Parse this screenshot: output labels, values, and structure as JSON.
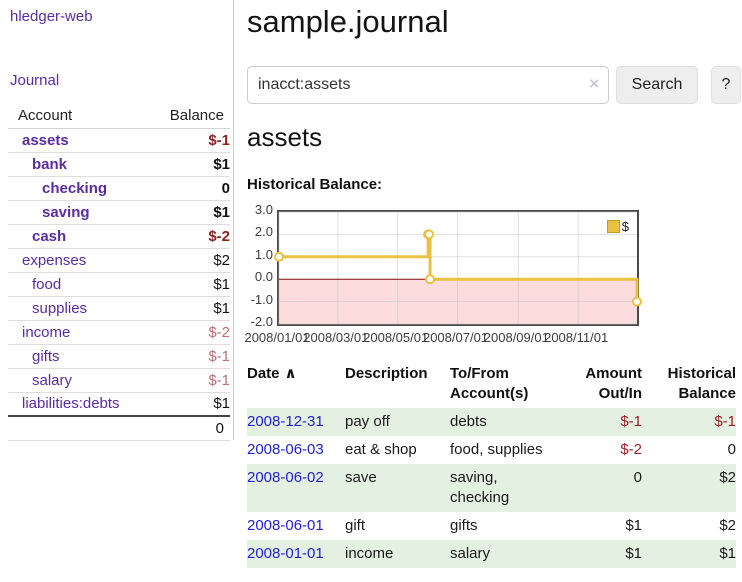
{
  "sidebar": {
    "brand": "hledger-web",
    "nav_journal": "Journal",
    "accounts": {
      "headers": [
        "Account",
        "Balance"
      ],
      "rows": [
        {
          "account": "assets",
          "balance": "$-1",
          "depth": 0,
          "bold": true,
          "tone": "neg-strong"
        },
        {
          "account": "bank",
          "balance": "$1",
          "depth": 1,
          "bold": true
        },
        {
          "account": "checking",
          "balance": "0",
          "depth": 2,
          "bold": true
        },
        {
          "account": "saving",
          "balance": "$1",
          "depth": 2,
          "bold": true
        },
        {
          "account": "cash",
          "balance": "$-2",
          "depth": 1,
          "bold": true,
          "tone": "neg-strong"
        },
        {
          "account": "expenses",
          "balance": "$2",
          "depth": 0,
          "bold": false
        },
        {
          "account": "food",
          "balance": "$1",
          "depth": 1,
          "bold": false
        },
        {
          "account": "supplies",
          "balance": "$1",
          "depth": 1,
          "bold": false
        },
        {
          "account": "income",
          "balance": "$-2",
          "depth": 0,
          "bold": false,
          "tone": "neg-soft"
        },
        {
          "account": "gifts",
          "balance": "$-1",
          "depth": 1,
          "bold": false,
          "tone": "neg-soft"
        },
        {
          "account": "salary",
          "balance": "$-1",
          "depth": 1,
          "bold": false,
          "tone": "neg-soft",
          "link": "new"
        },
        {
          "account": "liabilities:debts",
          "balance": "$1",
          "depth": 0,
          "bold": false
        }
      ],
      "total": "0"
    }
  },
  "header": {
    "title": "sample.journal"
  },
  "search": {
    "value": "inacct:assets",
    "clear_icon": "×",
    "button_label": "Search",
    "help_label": "?"
  },
  "register": {
    "heading": "assets",
    "table": {
      "headers": [
        "Date",
        "Description",
        "To/From Account(s)",
        "Amount Out/In",
        "Historical Balance"
      ],
      "sort": {
        "column": "Date",
        "direction": "ascending",
        "glyph": "∧"
      },
      "rows": [
        {
          "date": "2008-12-31",
          "description": "pay off",
          "accounts": "debts",
          "amount": "$-1",
          "balance": "$-1",
          "amount_tone": "neg",
          "balance_tone": "neg"
        },
        {
          "date": "2008-06-03",
          "description": "eat & shop",
          "accounts": "food, supplies",
          "amount": "$-2",
          "balance": "0",
          "amount_tone": "neg"
        },
        {
          "date": "2008-06-02",
          "description": "save",
          "accounts": "saving, checking",
          "amount": "0",
          "balance": "$2"
        },
        {
          "date": "2008-06-01",
          "description": "gift",
          "accounts": "gifts",
          "amount": "$1",
          "balance": "$2"
        },
        {
          "date": "2008-01-01",
          "description": "income",
          "accounts": "salary",
          "amount": "$1",
          "balance": "$1"
        }
      ]
    }
  },
  "chart_data": {
    "type": "line",
    "step": true,
    "title": "Historical Balance:",
    "series": [
      {
        "name": "$",
        "color": "#e8c240",
        "points": [
          {
            "x": "2008/01/01",
            "y": 1
          },
          {
            "x": "2008/06/01",
            "y": 2
          },
          {
            "x": "2008/06/02",
            "y": 2
          },
          {
            "x": "2008/06/03",
            "y": 0
          },
          {
            "x": "2008/12/31",
            "y": -1
          }
        ]
      }
    ],
    "x_range": [
      "2008/01/01",
      "2008/12/31"
    ],
    "ylim": [
      -2,
      3
    ],
    "x_ticks": [
      "2008/01/01",
      "2008/03/01",
      "2008/05/01",
      "2008/07/01",
      "2008/09/01",
      "2008/11/01"
    ],
    "y_ticks": [
      "3.0",
      "2.0",
      "1.0",
      "0.0",
      "-1.0",
      "-2.0"
    ],
    "grid": true,
    "negative_region_color": "#fcdcdc",
    "zero_line_color": "#8c0d0d",
    "grid_color": "#c9c9c9",
    "legend": {
      "label": "$",
      "position": "top-right"
    }
  }
}
